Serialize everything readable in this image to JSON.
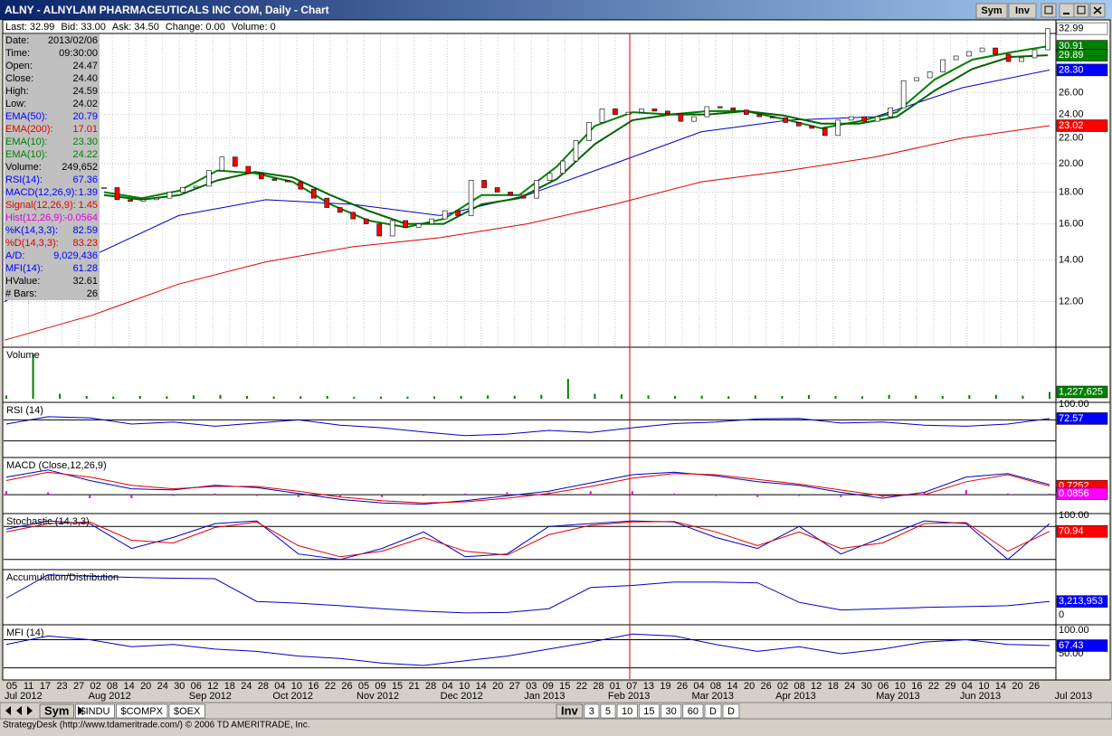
{
  "window": {
    "title": "ALNY - ALNYLAM PHARMACEUTICALS INC COM, Daily - Chart",
    "buttons": [
      "Sym",
      "Inv"
    ]
  },
  "quote": [
    [
      "Last:",
      "32.99"
    ],
    [
      "Bid:",
      "33.00"
    ],
    [
      "Ask:",
      "34.50"
    ],
    [
      "Change:",
      "0.00"
    ],
    [
      "Volume:",
      "0"
    ]
  ],
  "info_panel": [
    {
      "label": "Date:",
      "value": "2013/02/06",
      "color": "#000000"
    },
    {
      "label": "Time:",
      "value": "09:30:00",
      "color": "#000000"
    },
    {
      "label": "Open:",
      "value": "24.47",
      "color": "#000000"
    },
    {
      "label": "Close:",
      "value": "24.40",
      "color": "#000000"
    },
    {
      "label": "High:",
      "value": "24.59",
      "color": "#000000"
    },
    {
      "label": "Low:",
      "value": "24.02",
      "color": "#000000"
    },
    {
      "label": "EMA(50):",
      "value": "20.79",
      "color": "#0000ff"
    },
    {
      "label": "EMA(200):",
      "value": "17.01",
      "color": "#e00000"
    },
    {
      "label": "EMA(10):",
      "value": "23.30",
      "color": "#008000"
    },
    {
      "label": "EMA(10):",
      "value": "24.22",
      "color": "#008000"
    },
    {
      "label": "Volume:",
      "value": "249,652",
      "color": "#000000"
    },
    {
      "label": "RSI(14):",
      "value": "67.36",
      "color": "#0000ff"
    },
    {
      "label": "MACD(12,26,9):",
      "value": "1.39",
      "color": "#0000ff"
    },
    {
      "label": "Signal(12,26,9):",
      "value": "1.45",
      "color": "#e00000"
    },
    {
      "label": "Hist(12,26,9):",
      "value": "-0.0564",
      "color": "#e000e0"
    },
    {
      "label": "%K(14,3,3):",
      "value": "82.59",
      "color": "#0000ff"
    },
    {
      "label": "%D(14,3,3):",
      "value": "83.23",
      "color": "#e00000"
    },
    {
      "label": "A/D:",
      "value": "9,029,436",
      "color": "#0000ff"
    },
    {
      "label": "MFI(14):",
      "value": "61.28",
      "color": "#0000ff"
    },
    {
      "label": "HValue:",
      "value": "32.61",
      "color": "#000000"
    },
    {
      "label": "# Bars:",
      "value": "26",
      "color": "#000000"
    }
  ],
  "price_chart": {
    "ylim": [
      10.2,
      32.4
    ],
    "log_scale": true,
    "yticks": [
      {
        "value": 12,
        "label": "12.00"
      },
      {
        "value": 14,
        "label": "14.00"
      },
      {
        "value": 16,
        "label": "16.00"
      },
      {
        "value": 18,
        "label": "18.00"
      },
      {
        "value": 20,
        "label": "20.00"
      },
      {
        "value": 22,
        "label": "22.00"
      },
      {
        "value": 24,
        "label": "24.00"
      },
      {
        "value": 26,
        "label": "26.00"
      }
    ],
    "up_color": "#ffffff",
    "down_color": "#ff0000",
    "closes": [
      18.3,
      17.5,
      17.4,
      17.5,
      17.6,
      18.0,
      18.3,
      18.4,
      19.5,
      20.5,
      19.8,
      19.3,
      18.9,
      18.8,
      18.7,
      18.2,
      17.6,
      17.0,
      16.7,
      16.3,
      16.0,
      15.3,
      16.2,
      15.8,
      16.0,
      16.3,
      16.8,
      16.5,
      18.8,
      18.3,
      18.0,
      17.8,
      17.6,
      18.8,
      19.3,
      20.2,
      21.8,
      23.3,
      24.5,
      24.0,
      24.2,
      24.5,
      24.3,
      24.1,
      23.4,
      23.8,
      24.7,
      24.6,
      24.4,
      24.0,
      23.8,
      23.7,
      23.3,
      23.0,
      22.8,
      22.2,
      23.5,
      23.8,
      23.4,
      23.8,
      24.6,
      27.2,
      27.5,
      28.1,
      29.4,
      29.8,
      30.3,
      30.7,
      30.0,
      29.2,
      29.6,
      30.5,
      32.99
    ],
    "long_emas": [
      {
        "color": "#e00000",
        "values": [
          10.4,
          11.4,
          12.8,
          13.9,
          14.7,
          15.2,
          16.0,
          17.2,
          18.7,
          19.5,
          20.5,
          22.0,
          23.02
        ]
      },
      {
        "color": "#0000c0",
        "values": [
          12.0,
          14.2,
          16.5,
          17.5,
          17.2,
          16.5,
          17.8,
          20.0,
          22.5,
          23.5,
          23.8,
          26.5,
          28.3
        ]
      }
    ],
    "short_emas": [
      {
        "color": "#008000",
        "values": [
          18.0,
          17.6,
          18.1,
          19.5,
          19.3,
          18.7,
          17.2,
          16.2,
          15.8,
          16.3,
          17.8,
          17.8,
          19.8,
          23.0,
          24.2,
          24.0,
          24.3,
          24.3,
          23.6,
          22.8,
          23.4,
          24.2,
          27.3,
          29.4,
          30.2,
          30.91
        ]
      },
      {
        "color": "#006400",
        "values": [
          17.8,
          17.5,
          17.8,
          18.8,
          19.4,
          19.0,
          17.8,
          16.8,
          16.0,
          16.0,
          17.2,
          17.6,
          18.9,
          21.5,
          23.5,
          24.0,
          24.0,
          24.3,
          23.9,
          23.2,
          23.2,
          23.8,
          26.2,
          28.4,
          29.7,
          29.89
        ]
      }
    ],
    "labels": [
      {
        "value": 32.99,
        "label": "32.99",
        "bg": "#ffffff",
        "fg": "#000000"
      },
      {
        "value": 30.91,
        "label": "30.91",
        "bg": "#008000",
        "fg": "#ffffff"
      },
      {
        "value": 29.89,
        "label": "29.89",
        "bg": "#008000",
        "fg": "#ffffff"
      },
      {
        "value": 28.3,
        "label": "28.30",
        "bg": "#0000ff",
        "fg": "#ffffff"
      },
      {
        "value": 23.02,
        "label": "23.02",
        "bg": "#ff0000",
        "fg": "#ffffff"
      }
    ]
  },
  "panels": [
    {
      "title": "Volume",
      "ylim": [
        0,
        9000000
      ],
      "levels": [],
      "series": [
        {
          "kind": "bar",
          "color": "#008000",
          "values": [
            600000,
            8200000,
            900000,
            500000,
            400000,
            500000,
            450000,
            600000,
            700000,
            500000,
            400000,
            450000,
            500000,
            350000,
            400000,
            380000,
            420000,
            500000,
            600000,
            550000,
            700000,
            3600000,
            900000,
            800000,
            600000,
            500000,
            550000,
            450000,
            600000,
            500000,
            650000,
            500000,
            450000,
            700000,
            600000,
            500000,
            650000,
            700000,
            550000,
            1227625
          ]
        }
      ],
      "labels": [
        {
          "value": 1227625,
          "label": "1,227,625",
          "bg": "#008000",
          "fg": "#ffffff"
        }
      ]
    },
    {
      "title": "RSI (14)",
      "ylim": [
        0,
        100
      ],
      "levels": [
        70,
        30
      ],
      "series": [
        {
          "kind": "line",
          "color": "#0000c0",
          "values": [
            62,
            76,
            74,
            62,
            66,
            58,
            64,
            70,
            60,
            55,
            47,
            40,
            43,
            50,
            46,
            55,
            63,
            66,
            72,
            73,
            64,
            66,
            60,
            58,
            62,
            72.57
          ]
        }
      ],
      "labels": [
        {
          "value": 100,
          "label": "100.00"
        },
        {
          "value": 72.57,
          "label": "72.57",
          "bg": "#0000ff",
          "fg": "#ffffff"
        }
      ]
    },
    {
      "title": "MACD (Close,12,26,9)",
      "ylim": [
        -1.6,
        3.0
      ],
      "levels": [
        0
      ],
      "series": [
        {
          "kind": "bar",
          "color": "#e000e0",
          "values": [
            0.3,
            0.2,
            -0.3,
            -0.3,
            -0.1,
            0.1,
            -0.1,
            -0.2,
            -0.2,
            -0.2,
            -0.1,
            0.1,
            0.2,
            0.2,
            0.3,
            0.3,
            0.1,
            -0.1,
            -0.2,
            -0.1,
            -0.2,
            -0.2,
            0.2,
            0.4,
            0.1,
            0.0856
          ]
        },
        {
          "kind": "line",
          "color": "#0000c0",
          "values": [
            1.5,
            2.1,
            1.2,
            0.5,
            0.4,
            0.8,
            0.6,
            0.1,
            -0.4,
            -0.7,
            -0.8,
            -0.5,
            -0.1,
            0.3,
            1.0,
            1.7,
            1.9,
            1.6,
            1.1,
            0.8,
            0.2,
            -0.3,
            0.2,
            1.5,
            1.8,
            0.85
          ]
        },
        {
          "kind": "line",
          "color": "#e00000",
          "values": [
            1.2,
            1.9,
            1.5,
            0.8,
            0.5,
            0.7,
            0.7,
            0.3,
            -0.2,
            -0.5,
            -0.7,
            -0.6,
            -0.3,
            0.1,
            0.7,
            1.4,
            1.8,
            1.7,
            1.3,
            0.9,
            0.4,
            -0.1,
            0.0,
            1.1,
            1.7,
            0.7252
          ]
        }
      ],
      "labels": [
        {
          "value": 0.7252,
          "label": "0.7252",
          "bg": "#ff0000",
          "fg": "#ffffff"
        },
        {
          "value": 0.0856,
          "label": "0.0856",
          "bg": "#ff00ff",
          "fg": "#ffffff"
        }
      ]
    },
    {
      "title": "Stochastic (14,3,3)",
      "ylim": [
        0,
        100
      ],
      "levels": [
        80,
        20
      ],
      "series": [
        {
          "kind": "line",
          "color": "#0000c0",
          "values": [
            75,
            90,
            85,
            40,
            60,
            85,
            90,
            30,
            20,
            40,
            70,
            25,
            30,
            80,
            85,
            90,
            88,
            60,
            40,
            80,
            30,
            60,
            90,
            85,
            20,
            85
          ]
        },
        {
          "kind": "line",
          "color": "#e00000",
          "values": [
            70,
            85,
            88,
            55,
            50,
            78,
            88,
            45,
            25,
            35,
            60,
            35,
            28,
            65,
            82,
            88,
            89,
            70,
            45,
            70,
            40,
            50,
            85,
            87,
            35,
            70.94
          ]
        }
      ],
      "labels": [
        {
          "value": 100,
          "label": "100.00"
        },
        {
          "value": 70.94,
          "label": "70.94",
          "bg": "#ff0000",
          "fg": "#ffffff"
        }
      ]
    },
    {
      "title": "Accumulation/Distribution",
      "ylim": [
        -2300000,
        10300000
      ],
      "levels": [],
      "series": [
        {
          "kind": "line",
          "color": "#0000c0",
          "values": [
            4000000,
            9500000,
            9200000,
            8900000,
            8700000,
            8600000,
            3200000,
            2800000,
            2200000,
            1500000,
            900000,
            500000,
            600000,
            1500000,
            6500000,
            7000000,
            7800000,
            7800000,
            7600000,
            3000000,
            1200000,
            1500000,
            1800000,
            2000000,
            2200000,
            3213953
          ]
        }
      ],
      "labels": [
        {
          "value": 3213953,
          "label": "3,213,953",
          "bg": "#0000ff",
          "fg": "#ffffff"
        },
        0
      ]
    },
    {
      "title": "MFI (14)",
      "ylim": [
        -4,
        108
      ],
      "levels": [
        80,
        20
      ],
      "series": [
        {
          "kind": "line",
          "color": "#0000c0",
          "values": [
            70,
            88,
            80,
            65,
            70,
            60,
            55,
            45,
            40,
            30,
            25,
            35,
            45,
            60,
            75,
            92,
            88,
            70,
            55,
            65,
            50,
            60,
            75,
            80,
            70,
            67.43
          ]
        }
      ],
      "labels": [
        {
          "value": 100,
          "label": "100.00"
        },
        {
          "value": 67.43,
          "label": "67.43",
          "bg": "#0000ff",
          "fg": "#ffffff"
        },
        {
          "value": 50,
          "label": "50.00"
        }
      ]
    }
  ],
  "date_axis": [
    {
      "month": "Jul 2012",
      "days": [
        "05",
        "11",
        "17",
        "23",
        "27"
      ]
    },
    {
      "month": "Aug 2012",
      "days": [
        "02",
        "08",
        "14",
        "20",
        "24",
        "30"
      ]
    },
    {
      "month": "Sep 2012",
      "days": [
        "06",
        "12",
        "18",
        "24",
        "28"
      ]
    },
    {
      "month": "Oct 2012",
      "days": [
        "04",
        "10",
        "16",
        "22",
        "26"
      ]
    },
    {
      "month": "Nov 2012",
      "days": [
        "05",
        "09",
        "15",
        "21",
        "28"
      ]
    },
    {
      "month": "Dec 2012",
      "days": [
        "04",
        "10",
        "14",
        "20",
        "27"
      ]
    },
    {
      "month": "Jan 2013",
      "days": [
        "03",
        "09",
        "15",
        "22",
        "28"
      ]
    },
    {
      "month": "Feb 2013",
      "days": [
        "01",
        "07",
        "13",
        "19",
        "26"
      ]
    },
    {
      "month": "Mar 2013",
      "days": [
        "04",
        "08",
        "14",
        "20",
        "26"
      ]
    },
    {
      "month": "Apr 2013",
      "days": [
        "02",
        "08",
        "12",
        "18",
        "24",
        "30"
      ]
    },
    {
      "month": "May 2013",
      "days": [
        "06",
        "10",
        "16",
        "22",
        "29"
      ]
    },
    {
      "month": "Jun 2013",
      "days": [
        "04",
        "10",
        "14",
        "20",
        "26"
      ]
    },
    {
      "month": "Jul 2013",
      "days": []
    }
  ],
  "tabs": {
    "left": [
      "Sym",
      "$INDU",
      "$COMPX",
      "$OEX"
    ],
    "right": [
      "Inv",
      "3",
      "5",
      "10",
      "15",
      "30",
      "60",
      "D",
      "D"
    ]
  },
  "status": "StrategyDesk (http://www.tdameritrade.com/) © 2006 TD AMERITRADE, Inc."
}
